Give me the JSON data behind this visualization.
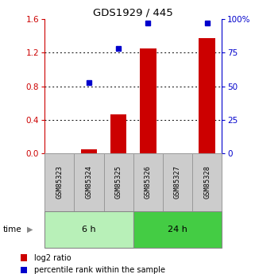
{
  "title": "GDS1929 / 445",
  "samples": [
    "GSM85323",
    "GSM85324",
    "GSM85325",
    "GSM85326",
    "GSM85327",
    "GSM85328"
  ],
  "log2_ratio": [
    0.0,
    0.05,
    0.47,
    1.25,
    0.0,
    1.37
  ],
  "percentile_rank": [
    null,
    53.0,
    78.0,
    97.0,
    null,
    97.0
  ],
  "groups": [
    {
      "label": "6 h",
      "indices": [
        0,
        1,
        2
      ],
      "color": "#b8f0b8"
    },
    {
      "label": "24 h",
      "indices": [
        3,
        4,
        5
      ],
      "color": "#44cc44"
    }
  ],
  "bar_color": "#cc0000",
  "dot_color": "#0000cc",
  "left_axis_color": "#cc0000",
  "right_axis_color": "#0000cc",
  "left_yticks": [
    0,
    0.4,
    0.8,
    1.2,
    1.6
  ],
  "right_yticks": [
    0,
    25,
    50,
    75,
    100
  ],
  "ylim_left": [
    0,
    1.6
  ],
  "ylim_right": [
    0,
    100
  ],
  "legend_items": [
    {
      "color": "#cc0000",
      "label": "log2 ratio"
    },
    {
      "color": "#0000cc",
      "label": "percentile rank within the sample"
    }
  ],
  "bg_color": "#ffffff",
  "sample_box_color": "#cccccc",
  "sample_box_edge_color": "#999999"
}
